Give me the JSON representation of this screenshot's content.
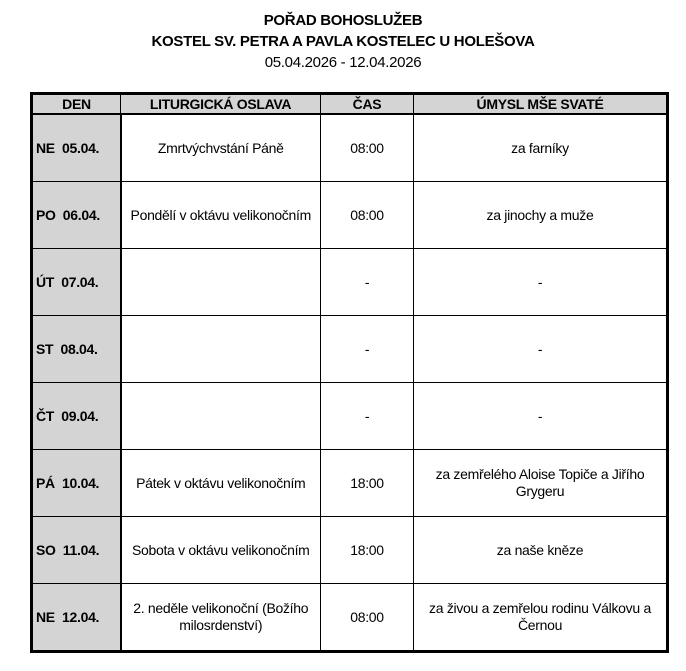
{
  "header": {
    "title": "POŘAD BOHOSLUŽEB",
    "church": "KOSTEL SV. PETRA A PAVLA KOSTELEC U HOLEŠOVA",
    "range": "05.04.2026 - 12.04.2026"
  },
  "columns": [
    "DEN",
    "LITURGICKÁ OSLAVA",
    "ČAS",
    "ÚMYSL MŠE SVATÉ"
  ],
  "rows": [
    {
      "day": "NE  05.04.",
      "celebration": "Zmrtvýchvstání Páně",
      "time": "08:00",
      "intention": "za farníky"
    },
    {
      "day": "PO  06.04.",
      "celebration": "Pondělí v oktávu velikonočním",
      "time": "08:00",
      "intention": "za jinochy a muže"
    },
    {
      "day": "ÚT  07.04.",
      "celebration": "",
      "time": "-",
      "intention": "-"
    },
    {
      "day": "ST  08.04.",
      "celebration": "",
      "time": "-",
      "intention": "-"
    },
    {
      "day": "ČT  09.04.",
      "celebration": "",
      "time": "-",
      "intention": "-"
    },
    {
      "day": "PÁ  10.04.",
      "celebration": "Pátek v oktávu velikonočním",
      "time": "18:00",
      "intention": "za zemřelého Aloise Topiče a Jiřího Grygeru"
    },
    {
      "day": "SO  11.04.",
      "celebration": "Sobota v oktávu velikonočním",
      "time": "18:00",
      "intention": "za naše kněze"
    },
    {
      "day": "NE  12.04.",
      "celebration": "2. neděle velikonoční (Božího milosrdenství)",
      "time": "08:00",
      "intention": "za živou a zemřelou rodinu Válkovu a Černou"
    }
  ]
}
